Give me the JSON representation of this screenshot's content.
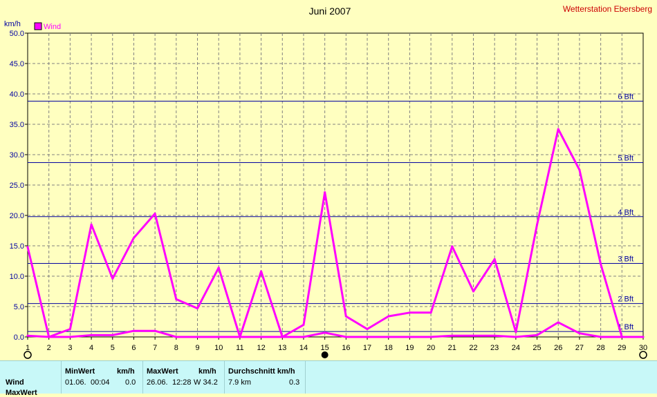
{
  "title": "Juni 2007",
  "station": "Wetterstation Ebersberg",
  "colors": {
    "background": "#ffffc0",
    "series": "#ff00ff",
    "beaufort": "#0000a0",
    "grid": "#808080",
    "title": "#000000",
    "station": "#cc0000"
  },
  "chart_data": {
    "type": "line",
    "title": "Juni 2007",
    "ylabel": "km/h",
    "xlabel": "",
    "ylim": [
      0,
      50
    ],
    "xlim": [
      1,
      30
    ],
    "y_ticks": [
      "0.0",
      "5.0",
      "10.0",
      "15.0",
      "20.0",
      "25.0",
      "30.0",
      "35.0",
      "40.0",
      "45.0",
      "50.0"
    ],
    "x_ticks": [
      "1",
      "2",
      "3",
      "4",
      "5",
      "6",
      "7",
      "8",
      "9",
      "10",
      "11",
      "12",
      "13",
      "14",
      "15",
      "16",
      "17",
      "18",
      "19",
      "20",
      "21",
      "22",
      "23",
      "24",
      "25",
      "26",
      "27",
      "28",
      "29",
      "30"
    ],
    "grid": true,
    "legend": "top-left",
    "series": [
      {
        "name": "Wind",
        "x": [
          1,
          2,
          3,
          4,
          5,
          6,
          7,
          8,
          9,
          10,
          11,
          12,
          13,
          14,
          15,
          16,
          17,
          18,
          19,
          20,
          21,
          22,
          23,
          24,
          25,
          26,
          27,
          28,
          29
        ],
        "values": [
          14.8,
          0,
          1.3,
          18.5,
          9.6,
          16.3,
          20.3,
          6.2,
          4.7,
          11.4,
          0,
          10.8,
          0,
          2.0,
          23.8,
          3.4,
          1.3,
          3.4,
          4.0,
          4.0,
          14.9,
          7.5,
          12.8,
          0.8,
          18.5,
          34.2,
          27.5,
          12.0,
          0
        ]
      },
      {
        "name": "",
        "x": [
          1,
          2,
          3,
          4,
          5,
          6,
          7,
          8,
          9,
          10,
          11,
          12,
          13,
          14,
          15,
          16,
          17,
          18,
          19,
          20,
          21,
          22,
          23,
          24,
          25,
          26,
          27,
          28,
          29,
          30
        ],
        "values": [
          0.2,
          0,
          0,
          0.3,
          0.3,
          1.0,
          1.0,
          0,
          0,
          0,
          0,
          0,
          0,
          0,
          0.7,
          0,
          0,
          0,
          0,
          0,
          0.2,
          0.2,
          0.2,
          0,
          0.3,
          2.4,
          0.6,
          0,
          0,
          0
        ]
      }
    ],
    "beaufort_lines": [
      {
        "label": "1 Bft",
        "value": 0.9
      },
      {
        "label": "2 Bft",
        "value": 5.5
      },
      {
        "label": "3 Bft",
        "value": 12.1
      },
      {
        "label": "4 Bft",
        "value": 19.8
      },
      {
        "label": "5 Bft",
        "value": 28.7
      },
      {
        "label": "6 Bft",
        "value": 38.8
      }
    ],
    "moon_phases": [
      {
        "day": 1,
        "phase": "full"
      },
      {
        "day": 15,
        "phase": "new"
      },
      {
        "day": 30,
        "phase": "full"
      }
    ]
  },
  "stats": {
    "row_label": "Wind",
    "row2_label": "MaxWert",
    "min_header": "MinWert",
    "min_unit": "km/h",
    "min_date": "01.06.",
    "min_time": "00:04",
    "min_value": "0.0",
    "max_header": "MaxWert",
    "max_unit": "km/h",
    "max_date": "26.06.",
    "max_time": "12:28",
    "max_value": "W 34.2",
    "avg_header": "Durchschnitt km/h",
    "avg_left": "7.9 km",
    "avg_value": "0.3"
  }
}
